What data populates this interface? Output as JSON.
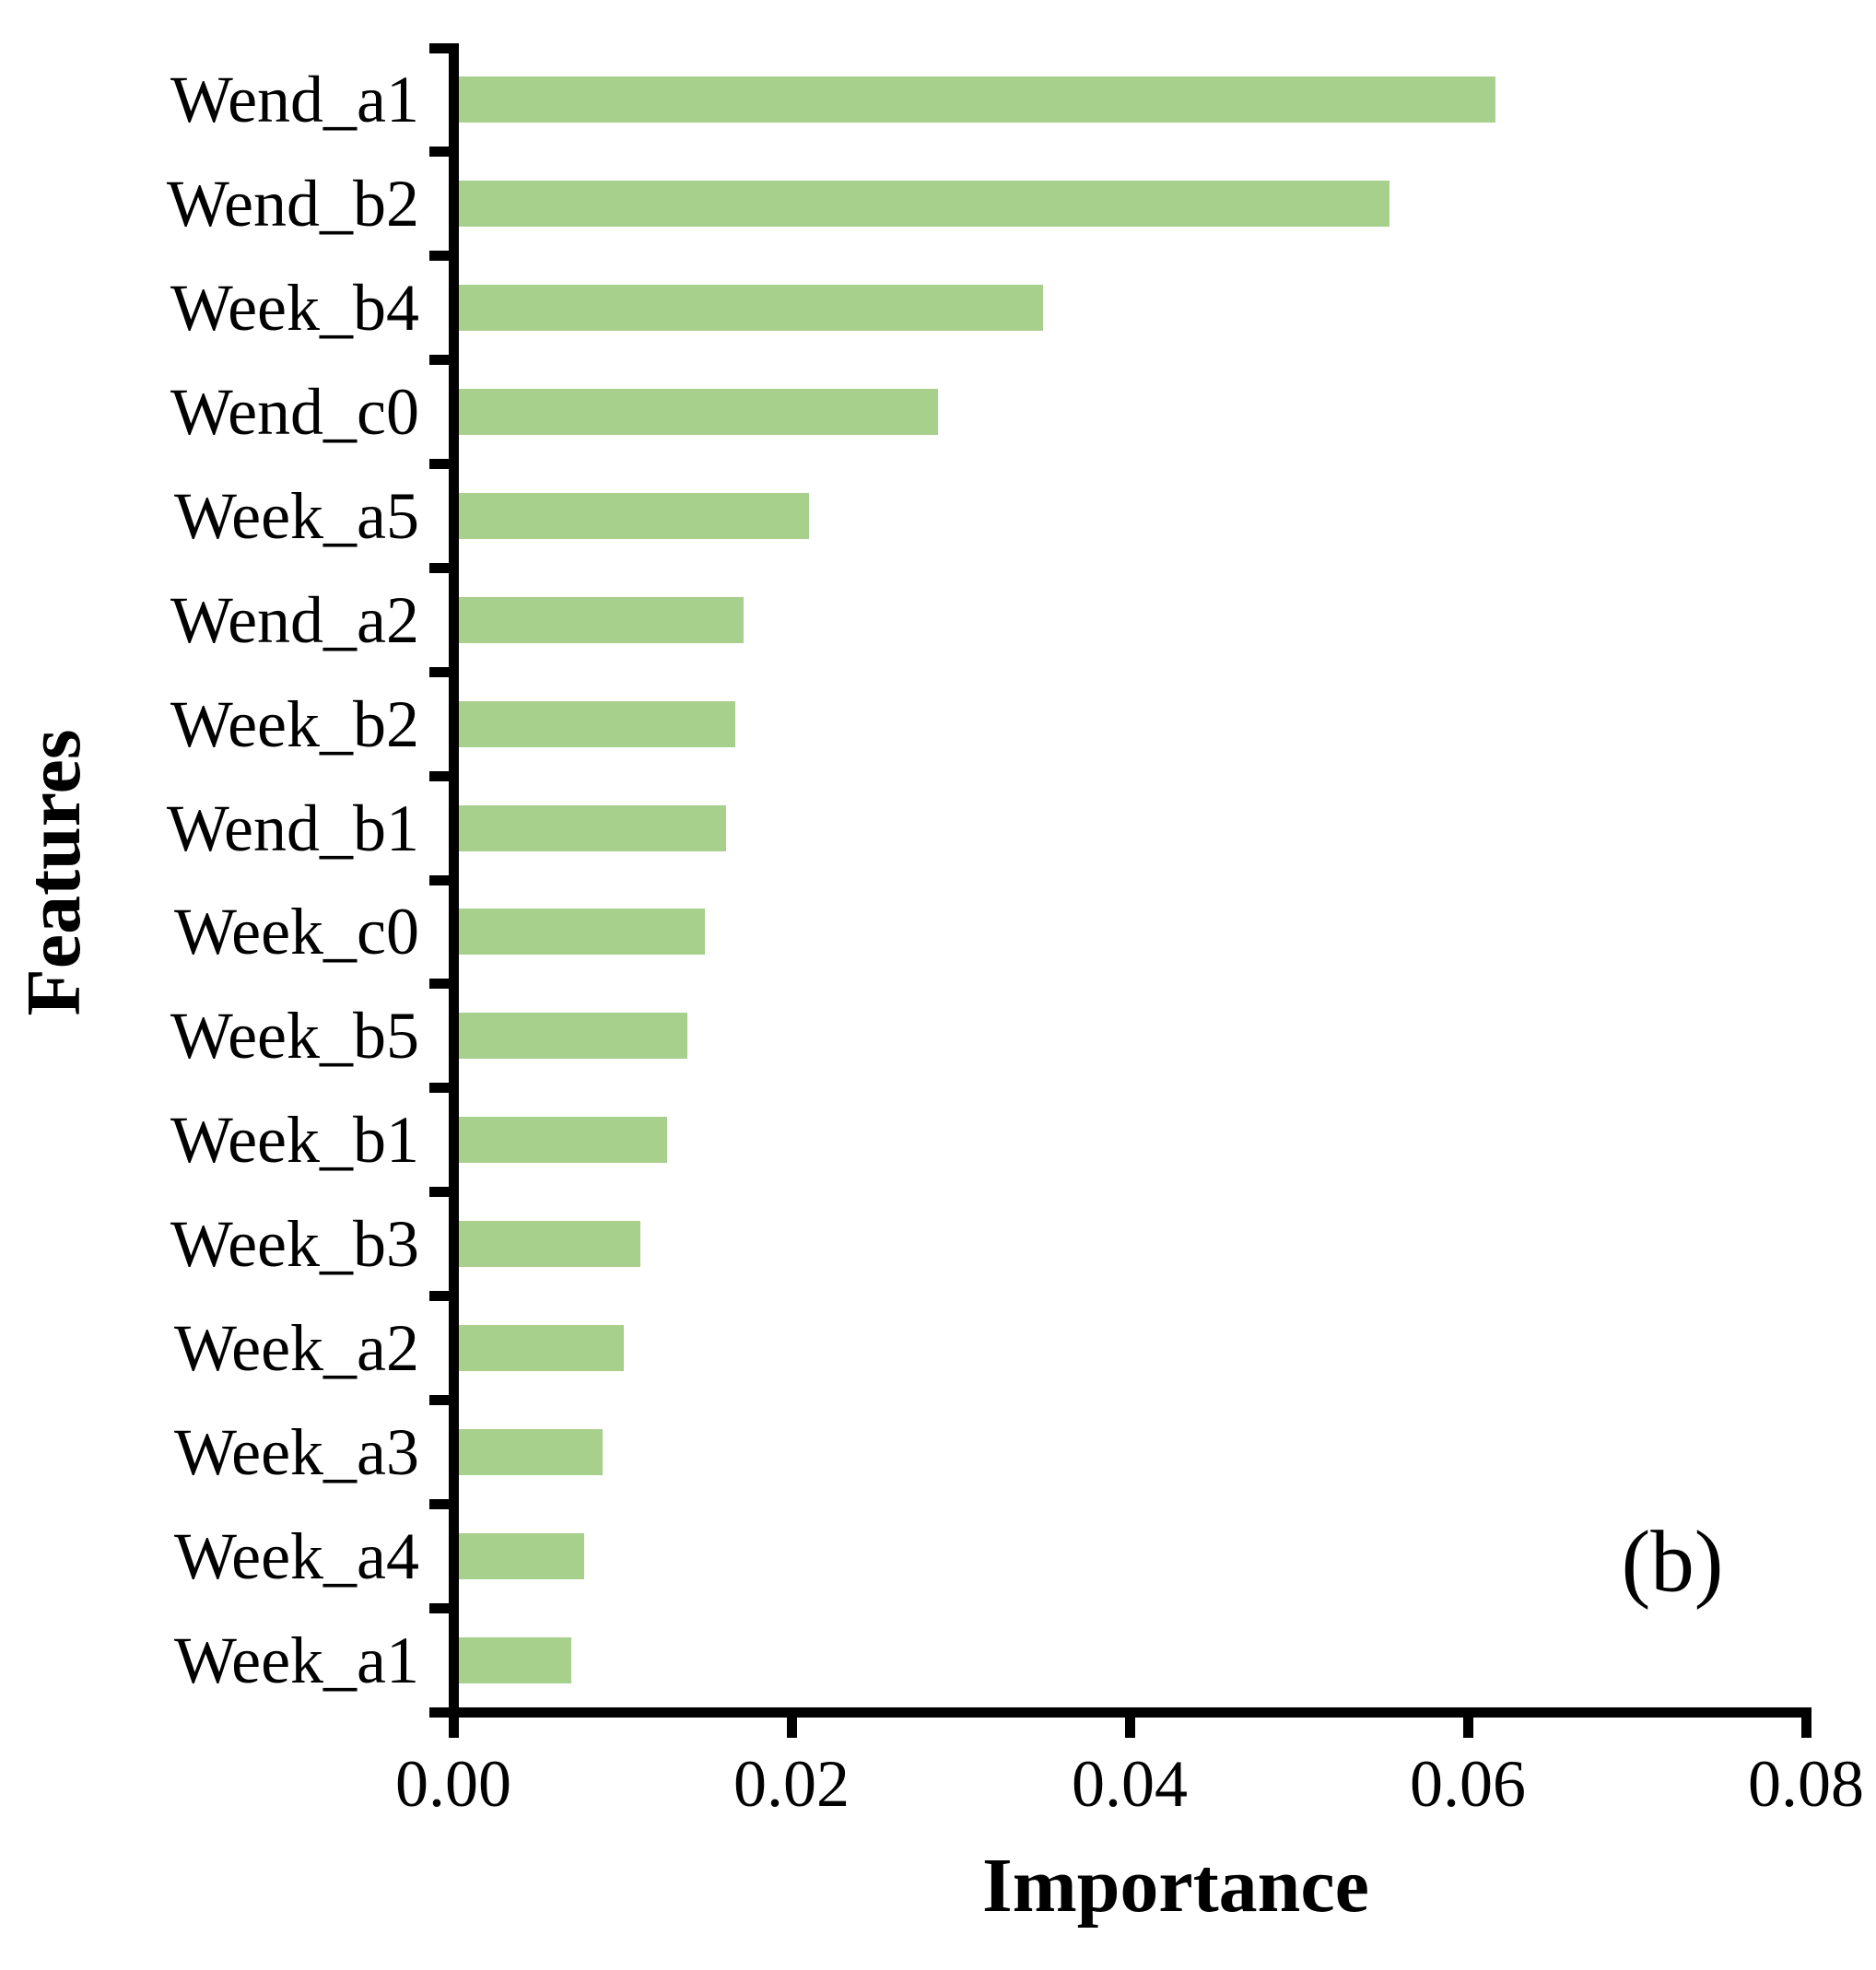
{
  "chart_data": {
    "type": "bar",
    "orientation": "horizontal",
    "title": "",
    "xlabel": "Importance",
    "ylabel": "Features",
    "annotation": "(b)",
    "categories": [
      "Wend_a1",
      "Wend_b2",
      "Week_b4",
      "Wend_c0",
      "Week_a5",
      "Wend_a2",
      "Week_b2",
      "Wend_b1",
      "Week_c0",
      "Week_b5",
      "Week_b1",
      "Week_b3",
      "Week_a2",
      "Week_a3",
      "Week_a4",
      "Week_a1"
    ],
    "values": [
      0.0616,
      0.0553,
      0.0348,
      0.0286,
      0.021,
      0.0171,
      0.0166,
      0.0161,
      0.0148,
      0.0138,
      0.0126,
      0.011,
      0.01,
      0.0088,
      0.0077,
      0.0069
    ],
    "xlim": [
      0,
      0.08
    ],
    "x_tick_labels": [
      "0.00",
      "0.02",
      "0.04",
      "0.06",
      "0.08"
    ],
    "x_tick_values": [
      0.0,
      0.02,
      0.04,
      0.06,
      0.08
    ],
    "grid": false,
    "legend": null,
    "colors": {
      "bar_fill": "#a8d08d",
      "axis": "#000000",
      "background": "#ffffff"
    }
  }
}
